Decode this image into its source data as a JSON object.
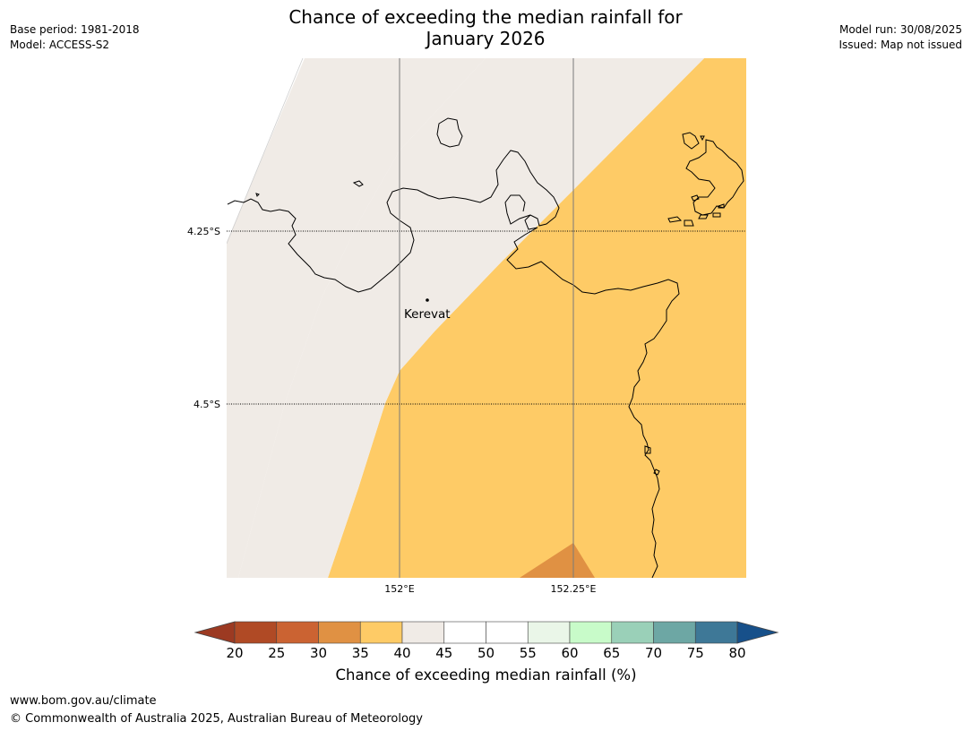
{
  "header": {
    "base_period": "Base period: 1981-2018",
    "model": "Model: ACCESS-S2",
    "model_run": "Model run: 30/08/2025",
    "issued": "Issued: Map not issued",
    "title_line1": "Chance of exceeding the median rainfall for",
    "title_line2": "January 2026"
  },
  "map": {
    "latitude_labels": [
      "4.25°S",
      "4.5°S"
    ],
    "longitude_labels": [
      "152°E",
      "152.25°E"
    ],
    "places": [
      {
        "name": "Kerevat"
      }
    ],
    "probability_regions": [
      {
        "category": "40-45",
        "color": "#f0ebe6"
      },
      {
        "category": "35-40",
        "color": "#fecb66"
      },
      {
        "category": "30-35",
        "color": "#e09143"
      }
    ],
    "coastline_color": "#000000"
  },
  "colorbar": {
    "label": "Chance of exceeding median rainfall (%)",
    "ticks": [
      "20",
      "25",
      "30",
      "35",
      "40",
      "45",
      "50",
      "55",
      "60",
      "65",
      "70",
      "75",
      "80"
    ],
    "colors": [
      "#b04a25",
      "#cb6332",
      "#e09143",
      "#fecb66",
      "#f0ebe6",
      "#ffffff",
      "#ffffff",
      "#eaf6e8",
      "#c8fbc9",
      "#9ad0b8",
      "#6da7a4",
      "#3e7897"
    ],
    "under_color": "#9c3a22",
    "over_color": "#17508a"
  },
  "footer": {
    "url": "www.bom.gov.au/climate",
    "copyright": "© Commonwealth of Australia 2025, Australian Bureau of Meteorology"
  }
}
